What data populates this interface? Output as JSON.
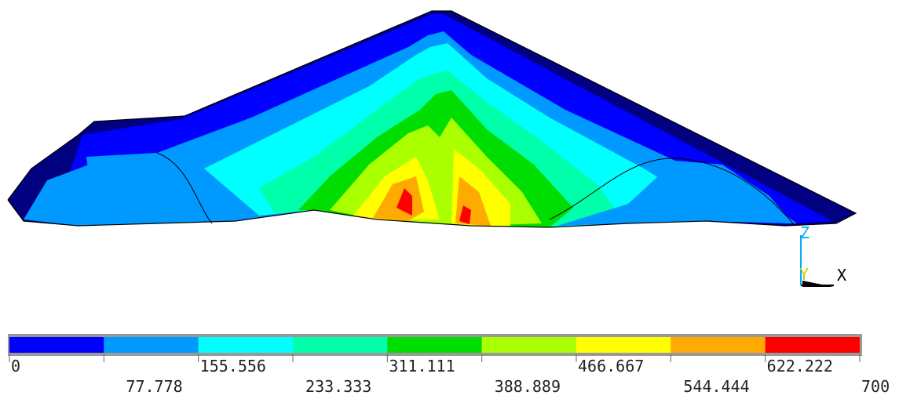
{
  "legend": {
    "bounds": [
      0,
      77.778,
      155.556,
      233.333,
      311.111,
      388.889,
      466.667,
      544.444,
      622.222,
      700
    ],
    "colors": [
      "#0000ff",
      "#0099ff",
      "#00ffff",
      "#00ffaa",
      "#00dd00",
      "#aaff00",
      "#ffff00",
      "#ffaa00",
      "#ff0000"
    ]
  },
  "axes": {
    "z": "Z",
    "y": "Y",
    "x": "X"
  }
}
